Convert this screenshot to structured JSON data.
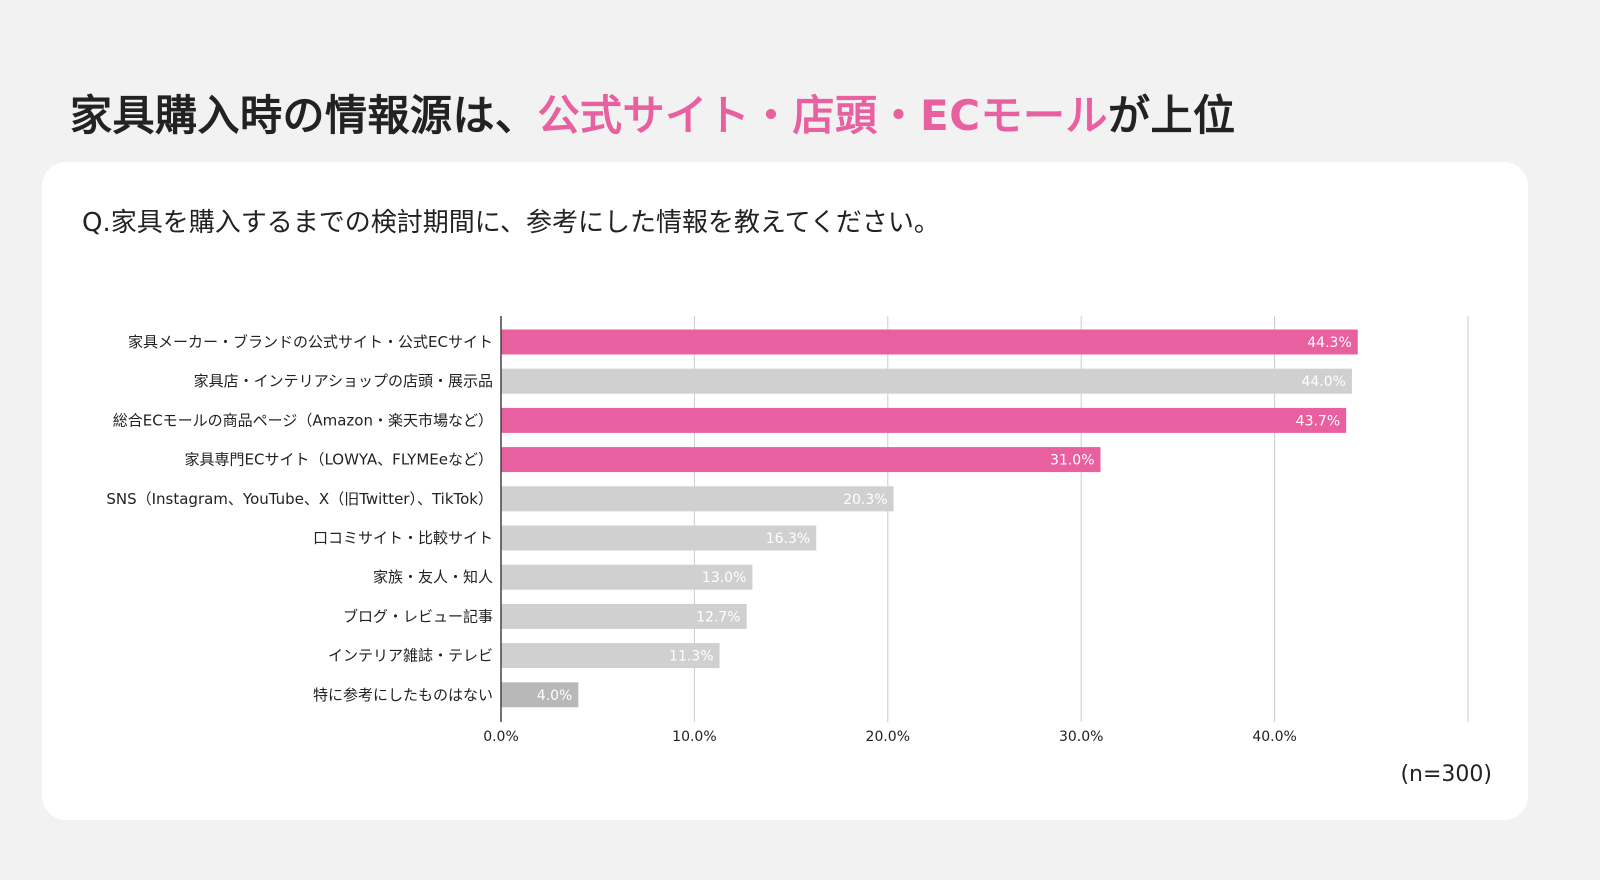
{
  "title": {
    "prefix": "家具購入時の情報源は、",
    "highlight": "公式サイト・店頭・ECモール",
    "suffix": "が上位"
  },
  "question": "Q.家具を購入するまでの検討期間に、参考にした情報を教えてください。",
  "sample_size": "(n=300)",
  "colors": {
    "highlight": "#e8609f",
    "bar_default": "#d0d0d0",
    "bar_low": "#b8b8b8",
    "grid": "#cccccc",
    "axis": "#444444"
  },
  "chart_data": {
    "type": "bar",
    "orientation": "horizontal",
    "categories": [
      "家具メーカー・ブランドの公式サイト・公式ECサイト",
      "家具店・インテリアショップの店頭・展示品",
      "総合ECモールの商品ページ（Amazon・楽天市場など）",
      "家具専門ECサイト（LOWYA、FLYMEeなど）",
      "SNS（Instagram、YouTube、X（旧Twitter）、TikTok）",
      "口コミサイト・比較サイト",
      "家族・友人・知人",
      "ブログ・レビュー記事",
      "インテリア雑誌・テレビ",
      "特に参考にしたものはない"
    ],
    "values": [
      44.3,
      44.0,
      43.7,
      31.0,
      20.3,
      16.3,
      13.0,
      12.7,
      11.3,
      4.0
    ],
    "value_labels": [
      "44.3%",
      "44.0%",
      "43.7%",
      "31.0%",
      "20.3%",
      "16.3%",
      "13.0%",
      "12.7%",
      "11.3%",
      "4.0%"
    ],
    "highlighted": [
      true,
      false,
      true,
      true,
      false,
      false,
      false,
      false,
      false,
      false
    ],
    "xlim": [
      0,
      50
    ],
    "xticks": [
      0,
      10,
      20,
      30,
      40,
      50
    ],
    "xtick_labels": [
      "0.0%",
      "10.0%",
      "20.0%",
      "30.0%",
      "40.0%",
      ""
    ],
    "grid": true
  }
}
